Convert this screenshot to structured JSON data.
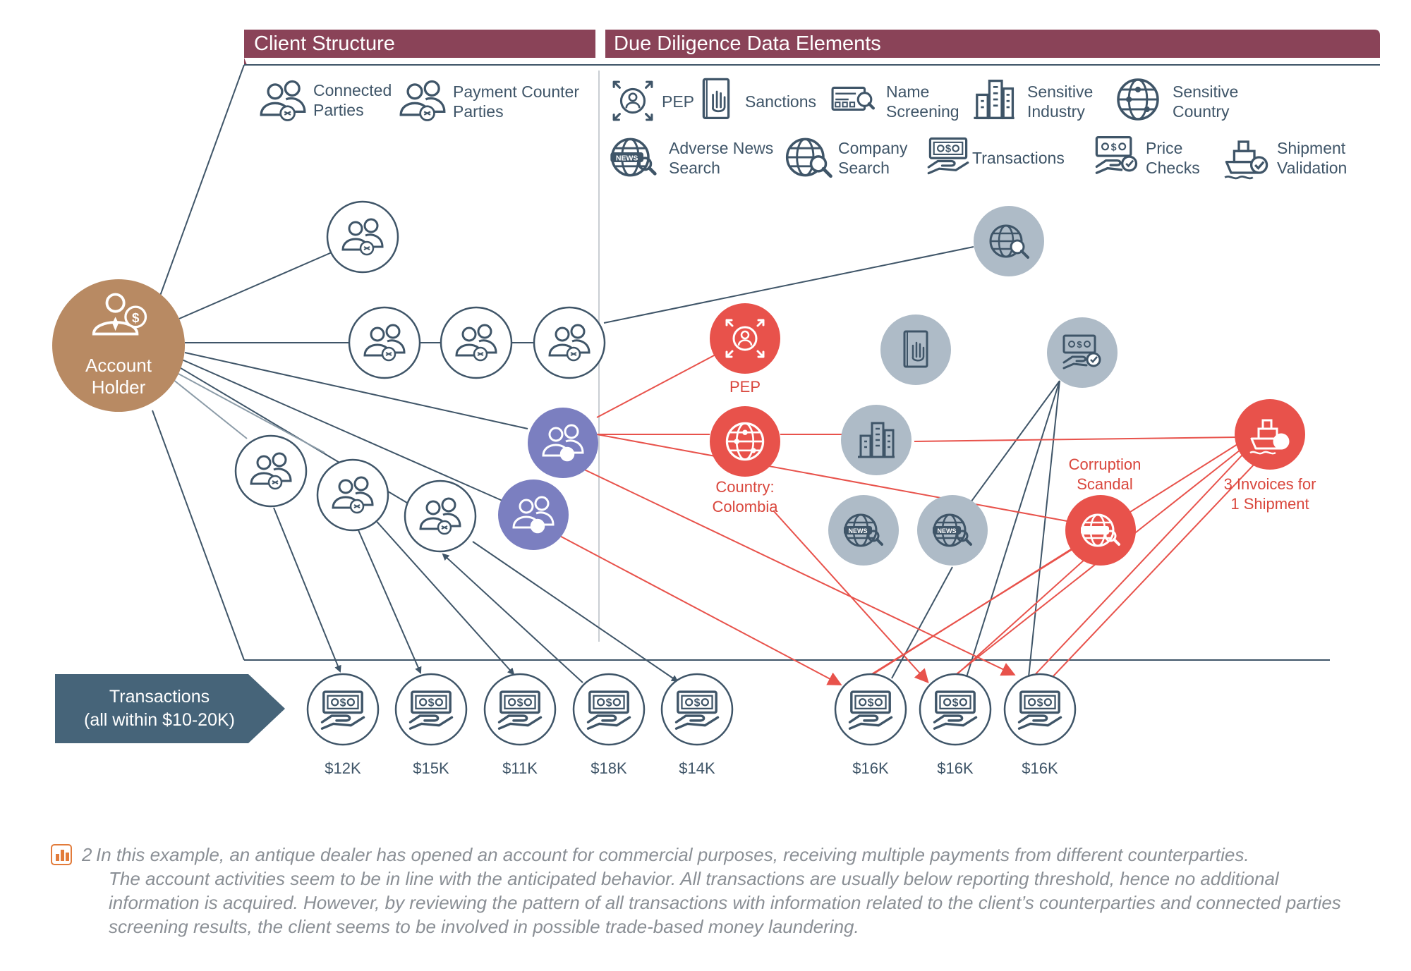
{
  "headers": {
    "client_structure": "Client Structure",
    "due_diligence": "Due Diligence Data Elements"
  },
  "legend": {
    "connected_parties": [
      "Connected",
      "Parties"
    ],
    "payment_counter_parties": [
      "Payment Counter",
      "Parties"
    ],
    "pep": "PEP",
    "sanctions": "Sanctions",
    "name_screening": [
      "Name",
      "Screening"
    ],
    "sensitive_industry": [
      "Sensitive",
      "Industry"
    ],
    "sensitive_country": [
      "Sensitive",
      "Country"
    ],
    "adverse_news_search": [
      "Adverse News",
      "Search"
    ],
    "company_search": [
      "Company",
      "Search"
    ],
    "transactions": "Transactions",
    "price_checks": [
      "Price",
      "Checks"
    ],
    "shipment_validation": [
      "Shipment",
      "Validation"
    ]
  },
  "account_holder": [
    "Account",
    "Holder"
  ],
  "node_labels": {
    "pep": "PEP",
    "country": [
      "Country:",
      "Colombia"
    ],
    "corruption": [
      "Corruption",
      "Scandal"
    ],
    "invoices": [
      "3 Invoices for",
      "1 Shipment"
    ]
  },
  "transactions_label": [
    "Transactions",
    "(all within $10-20K)"
  ],
  "amounts": [
    "$12K",
    "$15K",
    "$11K",
    "$18K",
    "$14K",
    "$16K",
    "$16K",
    "$16K"
  ],
  "caption": {
    "number": "2",
    "lines": [
      "In this example, an antique dealer has opened an account for commercial purposes, receiving multiple payments from different counterparties.",
      "The account activities seem to be in line with the anticipated behavior. All transactions are usually below reporting threshold, hence no additional",
      "information is acquired. However, by reviewing the pattern of all transactions with information related to the client’s counterparties and connected parties",
      "screening results, the client seems to be involved in possible trade-based money laundering."
    ]
  },
  "colors": {
    "header_bg": "#8a4358",
    "primary_blue": "#3f5568",
    "account_brown": "#b88a63",
    "alert_red": "#e8524b",
    "purple_node": "#7b7fc0",
    "grey_node": "#aebbc7",
    "tx_label_bg": "#466479"
  }
}
